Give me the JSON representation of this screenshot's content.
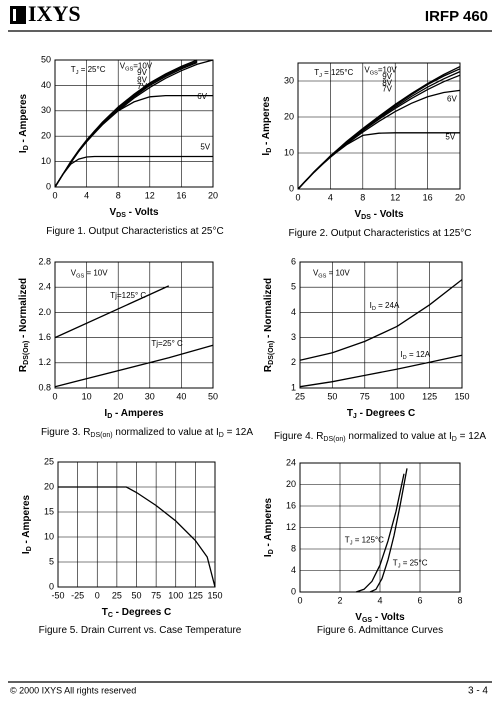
{
  "header": {
    "logo": "IXYS",
    "part": "IRFP 460"
  },
  "footer": {
    "copyright": "© 2000 IXYS All rights reserved",
    "page": "3 - 4"
  },
  "chart_data": [
    {
      "type": "line",
      "title": [
        "Figure 1. Output Characteristics at 25°C"
      ],
      "x_label": [
        "V",
        "DS",
        " - Volts"
      ],
      "y_label": [
        "I",
        "D",
        " - Amperes"
      ],
      "xlim": [
        0,
        20
      ],
      "xticks": [
        0,
        4,
        8,
        12,
        16,
        20
      ],
      "ylim": [
        0,
        50
      ],
      "yticks": [
        0,
        10,
        20,
        30,
        40,
        50
      ],
      "grid": true,
      "annotations": [
        [
          "T",
          "J",
          " = 25°C"
        ]
      ],
      "x": [
        0,
        1,
        2,
        3,
        4,
        5,
        6,
        8,
        10,
        12,
        14,
        16,
        18,
        20
      ],
      "series": [
        {
          "name": [
            "V",
            "GS",
            "=10V"
          ],
          "color": "#000000",
          "values": [
            0,
            5,
            10,
            14.5,
            18.5,
            22,
            25.5,
            31.5,
            36.5,
            41,
            44.5,
            47.5,
            50,
            null
          ]
        },
        {
          "name": "9V",
          "color": "#000000",
          "values": [
            0,
            5,
            10,
            14.3,
            18.3,
            21.8,
            25.2,
            31,
            36,
            40.5,
            44,
            47,
            49.5,
            null
          ]
        },
        {
          "name": "8V",
          "color": "#000000",
          "values": [
            0,
            5,
            9.8,
            14.1,
            18,
            21.5,
            24.8,
            30.5,
            35.5,
            40,
            43.5,
            46.5,
            49,
            null
          ]
        },
        {
          "name": "7V",
          "color": "#000000",
          "values": [
            0,
            5,
            9.7,
            14,
            17.8,
            21.2,
            24.5,
            30,
            35,
            39.2,
            42.8,
            45.8,
            48.3,
            50
          ]
        },
        {
          "name": "6V",
          "color": "#000000",
          "values": [
            0,
            5,
            9.5,
            14,
            18,
            22,
            25,
            30,
            33.5,
            35.5,
            36,
            36,
            36,
            36
          ]
        },
        {
          "name": "5V",
          "color": "#000000",
          "values": [
            0,
            5,
            9,
            11,
            11.8,
            12,
            12,
            12,
            12,
            12,
            12,
            12,
            12,
            12
          ]
        }
      ]
    },
    {
      "type": "line",
      "title": [
        "Figure 2. Output Characteristics at 125°C"
      ],
      "x_label": [
        "V",
        "DS",
        " - Volts"
      ],
      "y_label": [
        "I",
        "D",
        " - Amperes"
      ],
      "xlim": [
        0,
        20
      ],
      "xticks": [
        0,
        4,
        8,
        12,
        16,
        20
      ],
      "ylim": [
        0,
        35
      ],
      "yticks": [
        0,
        10,
        20,
        30
      ],
      "grid": true,
      "annotations": [
        [
          "T",
          "J",
          " = 125°C"
        ]
      ],
      "x": [
        0,
        1,
        2,
        3,
        4,
        5,
        6,
        8,
        10,
        12,
        14,
        16,
        18,
        20
      ],
      "series": [
        {
          "name": [
            "V",
            "GS",
            "=10V"
          ],
          "color": "#000000",
          "values": [
            0,
            2.4,
            4.8,
            7,
            9.2,
            11.2,
            13.2,
            16.8,
            20.2,
            23.5,
            26.5,
            29.3,
            31.8,
            34
          ]
        },
        {
          "name": "9V",
          "color": "#000000",
          "values": [
            0,
            2.4,
            4.8,
            7,
            9.1,
            11.1,
            13,
            16.6,
            20,
            23.2,
            26.2,
            29,
            31.4,
            33.4
          ]
        },
        {
          "name": "8V",
          "color": "#000000",
          "values": [
            0,
            2.4,
            4.8,
            7,
            9,
            11,
            12.9,
            16.4,
            19.7,
            22.8,
            25.7,
            28.3,
            30.6,
            32.6
          ]
        },
        {
          "name": "7V",
          "color": "#000000",
          "values": [
            0,
            2.4,
            4.7,
            6.9,
            8.9,
            10.9,
            12.7,
            16.2,
            19.4,
            22.4,
            25.1,
            27.6,
            29.8,
            31.6
          ]
        },
        {
          "name": "6V",
          "color": "#000000",
          "values": [
            0,
            2.4,
            4.7,
            6.9,
            8.9,
            10.8,
            12.5,
            15.8,
            18.8,
            21.5,
            23.8,
            25.6,
            26.8,
            27.4
          ]
        },
        {
          "name": "5V",
          "color": "#000000",
          "values": [
            0,
            2.4,
            4.7,
            6.8,
            8.8,
            10.6,
            12.3,
            14.9,
            15.5,
            15.6,
            15.6,
            15.6,
            15.6,
            15.6
          ]
        }
      ]
    },
    {
      "type": "line",
      "title": [
        "Figure 3. R",
        "DS(on)",
        " normalized to value at I",
        "D",
        " = 12A"
      ],
      "x_label": [
        "I",
        "D",
        " - Amperes"
      ],
      "y_label": [
        "R",
        "DS(On)",
        " - Normalized"
      ],
      "xlim": [
        0,
        50
      ],
      "xticks": [
        0,
        10,
        20,
        30,
        40,
        50
      ],
      "ylim": [
        0.8,
        2.8
      ],
      "yticks": [
        0.8,
        1.2,
        1.6,
        {
          "value": 2,
          "label": "2.0"
        },
        2.4,
        2.8
      ],
      "grid": true,
      "annotations": [
        [
          "V",
          "GS",
          " = 10V"
        ]
      ],
      "x": [
        0,
        36,
        50
      ],
      "series": [
        {
          "name": "Tj=125° C",
          "color": "#000000",
          "values": [
            1.6,
            2.42,
            null
          ]
        },
        {
          "name": "Tj=25° C",
          "color": "#000000",
          "values": [
            0.82,
            1.28,
            1.48
          ]
        }
      ]
    },
    {
      "type": "line",
      "title": [
        "Figure 4. R",
        "DS(on)",
        " normalized to value at I",
        "D",
        " = 12A"
      ],
      "x_label": [
        "T",
        "J",
        " - Degrees C"
      ],
      "y_label": [
        "R",
        "DS(On)",
        " - Normalized"
      ],
      "xlim": [
        25,
        150
      ],
      "xticks": [
        25,
        50,
        75,
        100,
        125,
        150
      ],
      "ylim": [
        1,
        6
      ],
      "yticks": [
        1,
        2,
        3,
        4,
        5,
        6
      ],
      "grid": true,
      "annotations": [
        [
          "V",
          "GS",
          " = 10V"
        ]
      ],
      "x": [
        25,
        50,
        75,
        100,
        125,
        150
      ],
      "series": [
        {
          "name": [
            "I",
            "D",
            " = 24A"
          ],
          "color": "#000000",
          "values": [
            2.1,
            2.4,
            2.85,
            3.45,
            4.3,
            5.3
          ]
        },
        {
          "name": [
            "I",
            "D",
            " = 12A"
          ],
          "color": "#000000",
          "values": [
            1.05,
            1.25,
            1.5,
            1.75,
            2.02,
            2.3
          ]
        }
      ]
    },
    {
      "type": "line",
      "title": [
        "Figure 5. Drain Current vs. Case Temperature"
      ],
      "x_label": [
        "T",
        "C",
        " - Degrees C"
      ],
      "y_label": [
        "I",
        "D",
        " - Amperes"
      ],
      "xlim": [
        -50,
        150
      ],
      "xticks": [
        -50,
        -25,
        0,
        25,
        50,
        75,
        100,
        125,
        150
      ],
      "ylim": [
        0,
        25
      ],
      "yticks": [
        0,
        5,
        10,
        15,
        20,
        25
      ],
      "grid": true,
      "annotations": [],
      "x": [
        -50,
        37,
        50,
        75,
        100,
        125,
        140,
        150
      ],
      "series": [
        {
          "name": null,
          "color": "#000000",
          "values": [
            20,
            20,
            18.9,
            16.3,
            13.2,
            9.3,
            6,
            0
          ]
        }
      ]
    },
    {
      "type": "line",
      "title": [
        "Figure 6. Admittance Curves"
      ],
      "x_label": [
        "V",
        "GS",
        " - Volts"
      ],
      "y_label": [
        "I",
        "D",
        " - Amperes"
      ],
      "xlim": [
        0,
        8
      ],
      "xticks": [
        0,
        2,
        4,
        6,
        8
      ],
      "ylim": [
        0,
        24
      ],
      "yticks": [
        0,
        4,
        8,
        12,
        16,
        20,
        24
      ],
      "grid": true,
      "annotations": [],
      "series": [
        {
          "name": [
            "T",
            "J",
            " = 125°C"
          ],
          "color": "#000000",
          "x": [
            2.8,
            3.2,
            3.6,
            4,
            4.4,
            4.8,
            5.2
          ],
          "values": [
            0,
            0.5,
            2,
            5,
            9.5,
            15,
            22
          ]
        },
        {
          "name": [
            "T",
            "J",
            " = 25°C"
          ],
          "color": "#000000",
          "x": [
            3.5,
            3.8,
            4.1,
            4.4,
            4.7,
            5,
            5.35
          ],
          "values": [
            0,
            0.5,
            2.5,
            6,
            10.5,
            16,
            23
          ]
        }
      ]
    }
  ]
}
